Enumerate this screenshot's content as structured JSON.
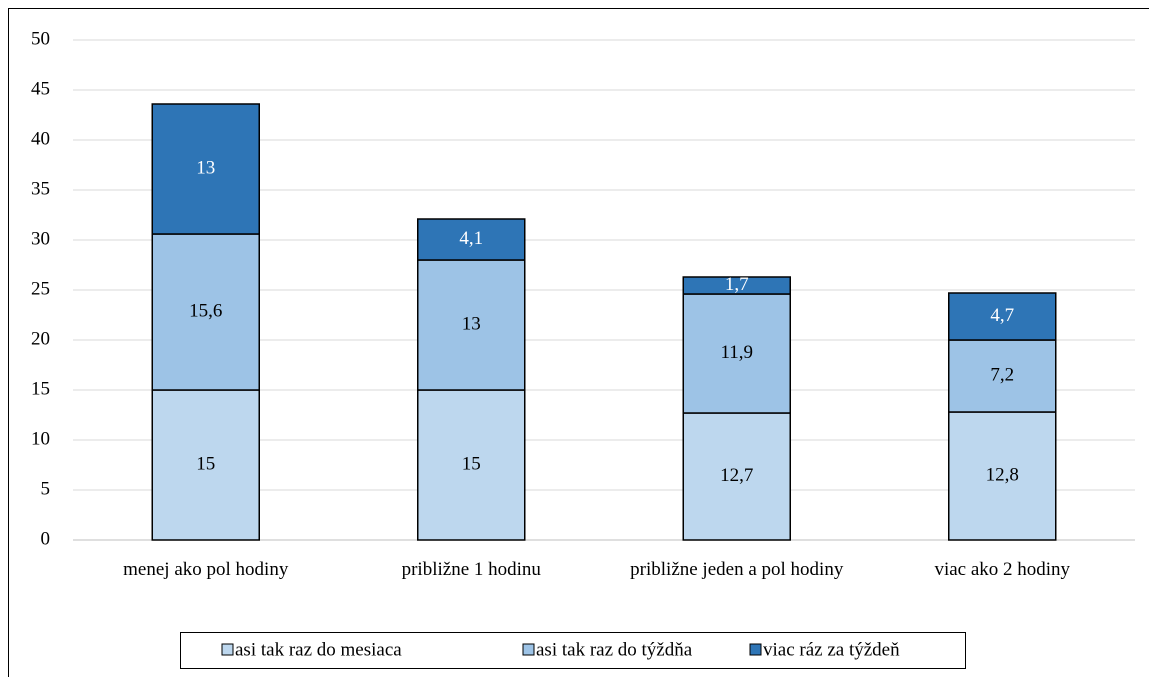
{
  "chart_data": {
    "type": "stacked_bar",
    "categories": [
      "menej ako pol hodiny",
      "približne 1 hodinu",
      "približne jeden a pol hodiny",
      "viac ako 2 hodiny"
    ],
    "series": [
      {
        "name": "asi tak raz do mesiaca",
        "color": "#bdd7ee",
        "values": [
          15,
          15,
          12.7,
          12.8
        ],
        "value_labels": [
          "15",
          "15",
          "12,7",
          "12,8"
        ],
        "label_color": "#000000"
      },
      {
        "name": "asi tak raz do týždňa",
        "color": "#9dc3e6",
        "values": [
          15.6,
          13,
          11.9,
          7.2
        ],
        "value_labels": [
          "15,6",
          "13",
          "11,9",
          "7,2"
        ],
        "label_color": "#000000"
      },
      {
        "name": "viac ráz za týždeň",
        "color": "#2e75b6",
        "values": [
          13,
          4.1,
          1.7,
          4.7
        ],
        "value_labels": [
          "13",
          "4,1",
          "1,7",
          "4,7"
        ],
        "label_color": "#ffffff"
      }
    ],
    "ylim": [
      0,
      50
    ],
    "yticks": [
      0,
      5,
      10,
      15,
      20,
      25,
      30,
      35,
      40,
      45,
      50
    ],
    "grid": true,
    "legend": "bottom"
  }
}
